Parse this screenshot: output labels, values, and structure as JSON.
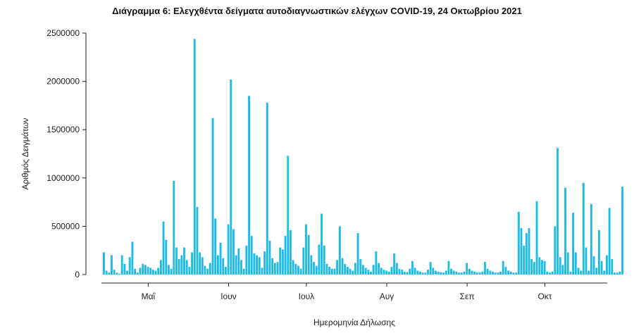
{
  "chart_data": {
    "type": "bar",
    "title": "Διάγραμμα 6: Ελεγχθέντα δείγματα αυτοδιαγνωστικών ελέγχων COVID-19, 24 Οκτωβρίου 2021",
    "xlabel": "Ημερομηνία Δήλωσης",
    "ylabel": "Αριθμός Δειγμάτων",
    "ylim": [
      0,
      2500000
    ],
    "yticks": [
      0,
      500000,
      1000000,
      1500000,
      2000000,
      2500000
    ],
    "ytick_labels": [
      "0",
      "500000",
      "1000000",
      "1500000",
      "2000000",
      "2500000"
    ],
    "x_start": "2021-04-14",
    "x_end": "2021-10-24",
    "xticks": [
      {
        "date": "2021-05-01",
        "label": "Μαΐ"
      },
      {
        "date": "2021-06-01",
        "label": "Ιουν"
      },
      {
        "date": "2021-07-01",
        "label": "Ιουλ"
      },
      {
        "date": "2021-08-01",
        "label": "Αυγ"
      },
      {
        "date": "2021-09-01",
        "label": "Σεπ"
      },
      {
        "date": "2021-10-01",
        "label": "Οκτ"
      }
    ],
    "grid": false,
    "legend": "none",
    "bar_color": "#1fbbe8",
    "values": [
      230000,
      40000,
      20000,
      200000,
      50000,
      20000,
      10000,
      200000,
      110000,
      40000,
      180000,
      340000,
      60000,
      20000,
      70000,
      110000,
      100000,
      80000,
      70000,
      50000,
      40000,
      70000,
      150000,
      550000,
      360000,
      100000,
      60000,
      970000,
      280000,
      160000,
      200000,
      280000,
      150000,
      80000,
      230000,
      2440000,
      700000,
      230000,
      180000,
      90000,
      60000,
      120000,
      1620000,
      580000,
      200000,
      330000,
      170000,
      80000,
      520000,
      2020000,
      470000,
      200000,
      270000,
      150000,
      60000,
      300000,
      1850000,
      400000,
      220000,
      200000,
      180000,
      70000,
      240000,
      1780000,
      350000,
      170000,
      120000,
      130000,
      280000,
      260000,
      400000,
      1230000,
      460000,
      150000,
      110000,
      90000,
      60000,
      280000,
      520000,
      410000,
      200000,
      130000,
      90000,
      310000,
      630000,
      300000,
      110000,
      80000,
      60000,
      60000,
      150000,
      500000,
      170000,
      110000,
      80000,
      60000,
      40000,
      120000,
      430000,
      160000,
      100000,
      70000,
      50000,
      30000,
      100000,
      240000,
      120000,
      70000,
      50000,
      40000,
      30000,
      80000,
      220000,
      120000,
      60000,
      50000,
      30000,
      25000,
      60000,
      140000,
      70000,
      40000,
      30000,
      20000,
      20000,
      50000,
      130000,
      70000,
      40000,
      30000,
      25000,
      20000,
      40000,
      140000,
      60000,
      40000,
      30000,
      20000,
      20000,
      30000,
      120000,
      60000,
      40000,
      30000,
      20000,
      20000,
      30000,
      130000,
      60000,
      40000,
      30000,
      20000,
      20000,
      30000,
      140000,
      80000,
      40000,
      30000,
      20000,
      20000,
      650000,
      480000,
      300000,
      430000,
      480000,
      160000,
      130000,
      760000,
      180000,
      150000,
      140000,
      30000,
      20000,
      30000,
      500000,
      1310000,
      180000,
      100000,
      900000,
      230000,
      30000,
      640000,
      230000,
      70000,
      40000,
      950000,
      280000,
      40000,
      730000,
      190000,
      70000,
      460000,
      140000,
      40000,
      200000,
      690000,
      160000,
      20000,
      20000,
      30000,
      910000
    ]
  }
}
